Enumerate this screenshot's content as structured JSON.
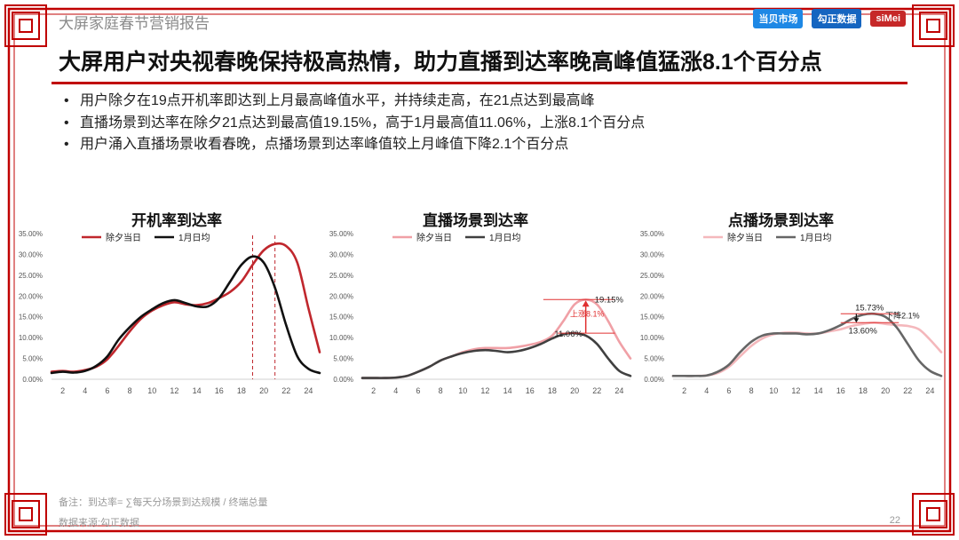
{
  "header": {
    "section_title": "大屏家庭春节营销报告",
    "logos": [
      "当贝市场",
      "勾正数据",
      "siMei"
    ]
  },
  "main_title": "大屏用户对央视春晚保持极高热情，助力直播到达率晚高峰值猛涨8.1个百分点",
  "bullets": [
    "用户除夕在19点开机率即达到上月最高峰值水平，并持续走高，在21点达到最高峰",
    "直播场景到达率在除夕21点达到最高值19.15%，高于1月最高值11.06%，上涨8.1个百分点",
    "用户涌入直播场景收看春晚，点播场景到达率峰值较上月峰值下降2.1个百分点"
  ],
  "colors": {
    "frame_red": "#c00000",
    "chart1_eve": "#c0272d",
    "chart1_jan": "#111111",
    "chart2_eve": "#f0a0a6",
    "chart2_jan": "#404040",
    "chart3_eve": "#f4b8bc",
    "chart3_jan": "#666666",
    "annot_red": "#e03030"
  },
  "chart_data": [
    {
      "type": "line",
      "title": "开机率到达率",
      "x": [
        1,
        2,
        3,
        4,
        5,
        6,
        7,
        8,
        9,
        10,
        11,
        12,
        13,
        14,
        15,
        16,
        17,
        18,
        19,
        20,
        21,
        22,
        23,
        24,
        25
      ],
      "xticks": [
        "2",
        "4",
        "6",
        "8",
        "10",
        "12",
        "14",
        "16",
        "18",
        "20",
        "22",
        "24"
      ],
      "yticks": [
        "0.00%",
        "5.00%",
        "10.00%",
        "15.00%",
        "20.00%",
        "25.00%",
        "30.00%",
        "35.00%"
      ],
      "ylim": [
        0,
        35
      ],
      "legend": "top-left",
      "series": [
        {
          "name": "除夕当日",
          "values": [
            1.8,
            2.0,
            1.8,
            2.2,
            3.0,
            4.8,
            8.0,
            11.5,
            14.5,
            16.5,
            17.8,
            18.5,
            18.0,
            17.8,
            18.3,
            19.5,
            21.0,
            23.5,
            27.5,
            31.0,
            32.5,
            32.0,
            28.0,
            17.0,
            6.5
          ]
        },
        {
          "name": "1月日均",
          "values": [
            1.5,
            1.8,
            1.6,
            2.0,
            3.2,
            5.5,
            9.5,
            12.5,
            15.0,
            16.8,
            18.3,
            19.0,
            18.3,
            17.5,
            17.5,
            19.5,
            23.5,
            27.5,
            29.5,
            28.0,
            22.0,
            13.0,
            5.5,
            2.5,
            1.5
          ]
        }
      ],
      "annotations": {
        "dashed_lines_at_x": [
          19,
          21
        ]
      }
    },
    {
      "type": "line",
      "title": "直播场景到达率",
      "x": [
        1,
        2,
        3,
        4,
        5,
        6,
        7,
        8,
        9,
        10,
        11,
        12,
        13,
        14,
        15,
        16,
        17,
        18,
        19,
        20,
        21,
        22,
        23,
        24,
        25
      ],
      "xticks": [
        "2",
        "4",
        "6",
        "8",
        "10",
        "12",
        "14",
        "16",
        "18",
        "20",
        "22",
        "24"
      ],
      "yticks": [
        "0.00%",
        "5.00%",
        "10.00%",
        "15.00%",
        "20.00%",
        "25.00%",
        "30.00%",
        "35.00%"
      ],
      "ylim": [
        0,
        35
      ],
      "legend": "top-left",
      "series": [
        {
          "name": "除夕当日",
          "values": [
            0.3,
            0.3,
            0.3,
            0.4,
            0.8,
            1.8,
            3.0,
            4.5,
            5.5,
            6.5,
            7.2,
            7.5,
            7.5,
            7.5,
            7.8,
            8.3,
            9.0,
            10.5,
            14.0,
            18.0,
            19.15,
            18.0,
            14.0,
            9.0,
            5.0
          ]
        },
        {
          "name": "1月日均",
          "values": [
            0.3,
            0.3,
            0.3,
            0.4,
            0.8,
            1.8,
            3.0,
            4.5,
            5.5,
            6.3,
            6.8,
            7.0,
            6.8,
            6.5,
            6.8,
            7.5,
            8.5,
            9.8,
            10.8,
            11.06,
            10.5,
            8.5,
            5.0,
            2.0,
            0.8
          ]
        }
      ],
      "annotations": {
        "peak_eve_label": "19.15%",
        "peak_jan_label": "11.06%",
        "change_label": "上涨8.1%"
      }
    },
    {
      "type": "line",
      "title": "点播场景到达率",
      "x": [
        1,
        2,
        3,
        4,
        5,
        6,
        7,
        8,
        9,
        10,
        11,
        12,
        13,
        14,
        15,
        16,
        17,
        18,
        19,
        20,
        21,
        22,
        23,
        24,
        25
      ],
      "xticks": [
        "2",
        "4",
        "6",
        "8",
        "10",
        "12",
        "14",
        "16",
        "18",
        "20",
        "22",
        "24"
      ],
      "yticks": [
        "0.00%",
        "5.00%",
        "10.00%",
        "15.00%",
        "20.00%",
        "25.00%",
        "30.00%",
        "35.00%"
      ],
      "ylim": [
        0,
        35
      ],
      "legend": "top-left",
      "series": [
        {
          "name": "除夕当日",
          "values": [
            0.8,
            0.8,
            0.8,
            0.9,
            1.5,
            3.0,
            5.5,
            8.0,
            9.8,
            10.8,
            11.2,
            11.2,
            11.0,
            11.0,
            11.5,
            12.0,
            12.8,
            13.3,
            13.6,
            13.3,
            13.0,
            12.8,
            12.0,
            9.5,
            6.5
          ]
        },
        {
          "name": "1月日均",
          "values": [
            0.8,
            0.8,
            0.8,
            0.9,
            1.8,
            3.5,
            6.5,
            9.0,
            10.5,
            11.0,
            11.0,
            11.0,
            10.8,
            11.0,
            11.8,
            13.0,
            14.5,
            15.5,
            15.73,
            15.0,
            12.5,
            8.5,
            4.5,
            2.0,
            0.8
          ]
        }
      ],
      "annotations": {
        "peak_jan_label": "15.73%",
        "peak_eve_label": "13.60%",
        "change_label": "下降2.1%"
      }
    }
  ],
  "footer": {
    "note": "备注：到达率= ∑每天分场景到达规模 / 终端总量",
    "source": "数据来源:勾正数据",
    "page": "22"
  }
}
